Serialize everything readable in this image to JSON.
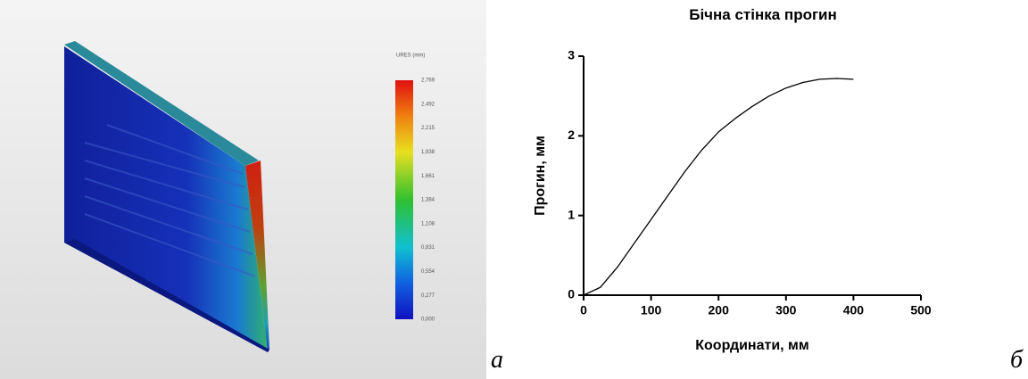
{
  "simulation": {
    "legend_title": "URES (mm)",
    "legend_labels": [
      "2,769",
      "2,492",
      "2,215",
      "1,938",
      "1,661",
      "1,384",
      "1,108",
      "0,831",
      "0,554",
      "0,277",
      "0,000"
    ]
  },
  "panel_labels": [
    "а",
    "б"
  ],
  "chart_data": {
    "type": "line",
    "title": "Бічна стінка прогин",
    "x_label": "Координати, мм",
    "y_label": "Прогин, мм",
    "x": [
      0,
      25,
      50,
      75,
      100,
      125,
      150,
      175,
      200,
      225,
      250,
      275,
      300,
      325,
      350,
      375,
      400
    ],
    "values": [
      0,
      0.1,
      0.35,
      0.65,
      0.95,
      1.25,
      1.55,
      1.82,
      2.05,
      2.22,
      2.37,
      2.5,
      2.6,
      2.67,
      2.71,
      2.72,
      2.71
    ],
    "color": "#000000",
    "xlim": [
      0,
      500
    ],
    "xticks": [
      0,
      100,
      200,
      300,
      400,
      500
    ],
    "ylim": [
      0,
      3
    ],
    "yticks": [
      0,
      1,
      2,
      3
    ]
  }
}
